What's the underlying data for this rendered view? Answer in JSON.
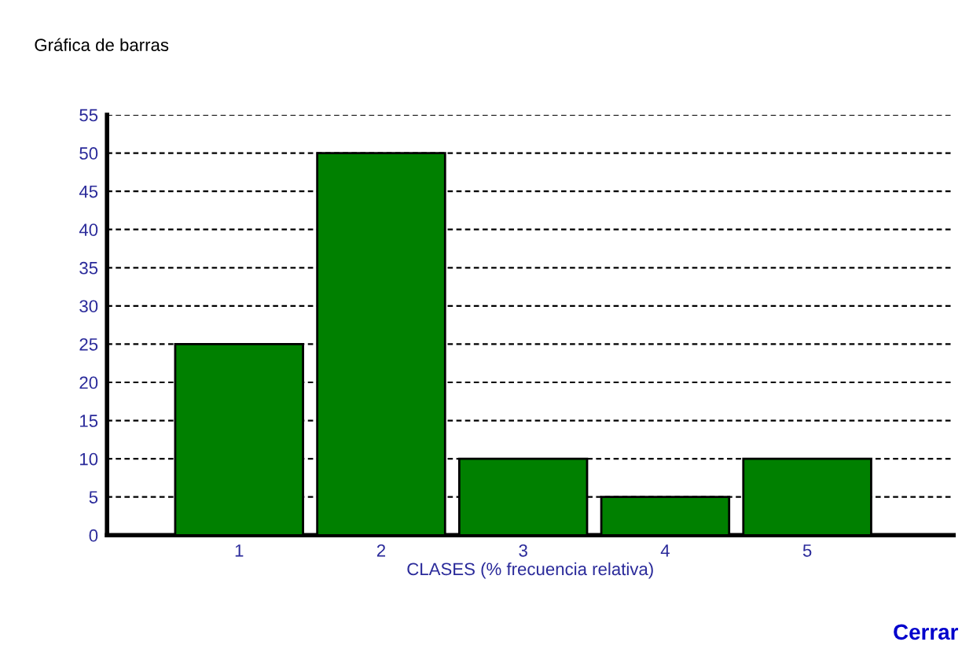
{
  "chart_data": {
    "type": "bar",
    "title": "Gráfica de barras",
    "categories": [
      "1",
      "2",
      "3",
      "4",
      "5"
    ],
    "values": [
      25,
      50,
      10,
      5,
      10
    ],
    "color": "#008000",
    "xlabel": "CLASES (% frecuencia relativa)",
    "ylim": [
      0,
      55
    ],
    "yticks": [
      0,
      5,
      10,
      15,
      20,
      25,
      30,
      35,
      40,
      45,
      50,
      55
    ],
    "grid": "y",
    "line_style": "dashed",
    "annotations": [
      "Cerrar"
    ]
  }
}
